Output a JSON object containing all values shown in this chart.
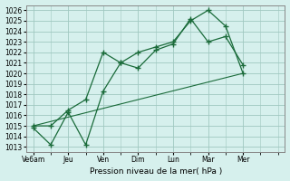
{
  "title": "",
  "xlabel": "Pression niveau de la mer( hPa )",
  "ylabel": "",
  "background_color": "#d6f0ed",
  "grid_color": "#a0c8c0",
  "line_color": "#1a6b3a",
  "ylim": [
    1012.5,
    1026.5
  ],
  "xlim": [
    -0.2,
    7.2
  ],
  "yticks": [
    1013,
    1014,
    1015,
    1016,
    1017,
    1018,
    1019,
    1020,
    1021,
    1022,
    1023,
    1024,
    1025,
    1026
  ],
  "xtick_labels": [
    "Ve6am",
    "Jeu",
    "Ven",
    "Dim",
    "Lun",
    "Mar",
    "Mer"
  ],
  "xtick_positions": [
    0,
    1,
    2,
    3,
    4,
    5,
    6
  ],
  "series1": {
    "x": [
      0,
      0.5,
      1.0,
      1.5,
      2.0,
      2.5,
      3.0,
      3.5,
      4.0,
      4.5,
      5.0,
      5.5,
      6.0
    ],
    "y": [
      1015.0,
      1015.0,
      1016.5,
      1017.5,
      1022.0,
      1021.0,
      1022.0,
      1022.5,
      1023.0,
      1025.0,
      1026.0,
      1024.5,
      1020.0
    ]
  },
  "series2": {
    "x": [
      0,
      0.5,
      1.0,
      1.5,
      2.0,
      2.5,
      3.0,
      3.5,
      4.0,
      4.5,
      5.0,
      5.5,
      6.0
    ],
    "y": [
      1014.8,
      1013.2,
      1016.3,
      1013.2,
      1018.3,
      1021.0,
      1020.5,
      1022.2,
      1022.8,
      1025.2,
      1023.0,
      1023.5,
      1020.8
    ]
  },
  "series3": {
    "x": [
      0,
      6.0
    ],
    "y": [
      1015.0,
      1020.0
    ]
  }
}
